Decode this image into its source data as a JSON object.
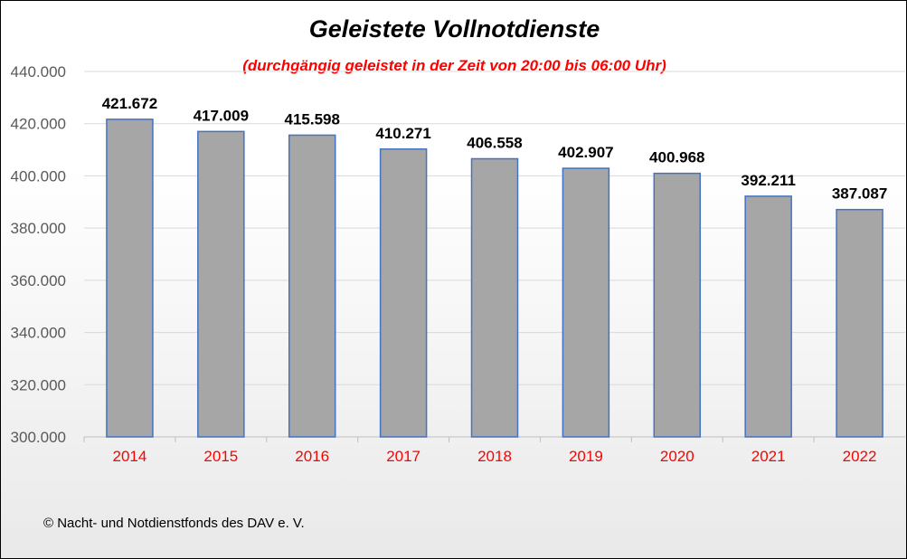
{
  "chart_data": {
    "type": "bar",
    "title": "Geleistete Vollnotdienste",
    "subtitle": "(durchgängig geleistet in der Zeit von 20:00 bis 06:00 Uhr)",
    "categories": [
      "2014",
      "2015",
      "2016",
      "2017",
      "2018",
      "2019",
      "2020",
      "2021",
      "2022"
    ],
    "values": [
      421672,
      417009,
      415598,
      410271,
      406558,
      402907,
      400968,
      392211,
      387087
    ],
    "data_labels": [
      "421.672",
      "417.009",
      "415.598",
      "410.271",
      "406.558",
      "402.907",
      "400.968",
      "392.211",
      "387.087"
    ],
    "ylim": [
      300000,
      440000
    ],
    "yticks": [
      300000,
      320000,
      340000,
      360000,
      380000,
      400000,
      420000,
      440000
    ],
    "ytick_labels": [
      "300.000",
      "320.000",
      "340.000",
      "360.000",
      "380.000",
      "400.000",
      "420.000",
      "440.000"
    ],
    "xlabel": "",
    "ylabel": "",
    "grid": true,
    "legend": "none"
  },
  "footer": "© Nacht- und Notdienstfonds  des DAV e. V.",
  "colors": {
    "bar_fill": "#a6a6a6",
    "bar_stroke": "#4472c4",
    "x_tick_text": "#ff0000",
    "subtitle_text": "#ff0000",
    "gridline": "#d9d9d9",
    "axis_line": "#bfbfbf"
  }
}
